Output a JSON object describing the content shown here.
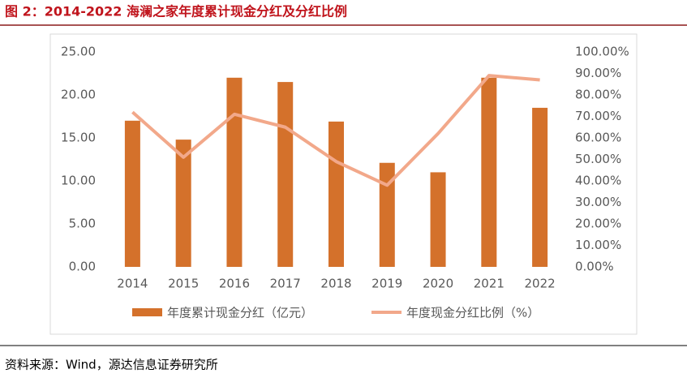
{
  "chart_data": {
    "type": "bar_line",
    "title": "图 2：2014-2022 海澜之家年度累计现金分红及分红比例",
    "source": "资料来源：Wind，源达信息证券研究所",
    "categories": [
      "2014",
      "2015",
      "2016",
      "2017",
      "2018",
      "2019",
      "2020",
      "2021",
      "2022"
    ],
    "series": [
      {
        "name": "年度累计现金分红（亿元）",
        "color": "#d4712b",
        "type": "bar",
        "values": [
          17.0,
          14.8,
          22.0,
          21.5,
          16.9,
          12.1,
          11.0,
          22.0,
          18.5
        ]
      },
      {
        "name": "年度现金分红比例（%）",
        "color": "#f2a88a",
        "type": "line",
        "axis": "y2",
        "values": [
          72,
          51,
          71,
          65,
          49,
          38,
          62,
          89,
          87
        ]
      }
    ],
    "ylim": [
      0,
      25
    ],
    "yticks": [
      {
        "value": 0,
        "label": "0.00"
      },
      {
        "value": 5,
        "label": "5.00"
      },
      {
        "value": 10,
        "label": "10.00"
      },
      {
        "value": 15,
        "label": "15.00"
      },
      {
        "value": 20,
        "label": "20.00"
      },
      {
        "value": 25,
        "label": "25.00"
      }
    ],
    "y2lim": [
      0,
      100
    ],
    "y2ticks": [
      {
        "value": 0,
        "label": "0.00%"
      },
      {
        "value": 10,
        "label": "10.00%"
      },
      {
        "value": 20,
        "label": "20.00%"
      },
      {
        "value": 30,
        "label": "30.00%"
      },
      {
        "value": 40,
        "label": "40.00%"
      },
      {
        "value": 50,
        "label": "50.00%"
      },
      {
        "value": 60,
        "label": "60.00%"
      },
      {
        "value": 70,
        "label": "70.00%"
      },
      {
        "value": 80,
        "label": "80.00%"
      },
      {
        "value": 90,
        "label": "90.00%"
      },
      {
        "value": 100,
        "label": "100.00%"
      }
    ],
    "grid": false,
    "legend": "bottom"
  }
}
